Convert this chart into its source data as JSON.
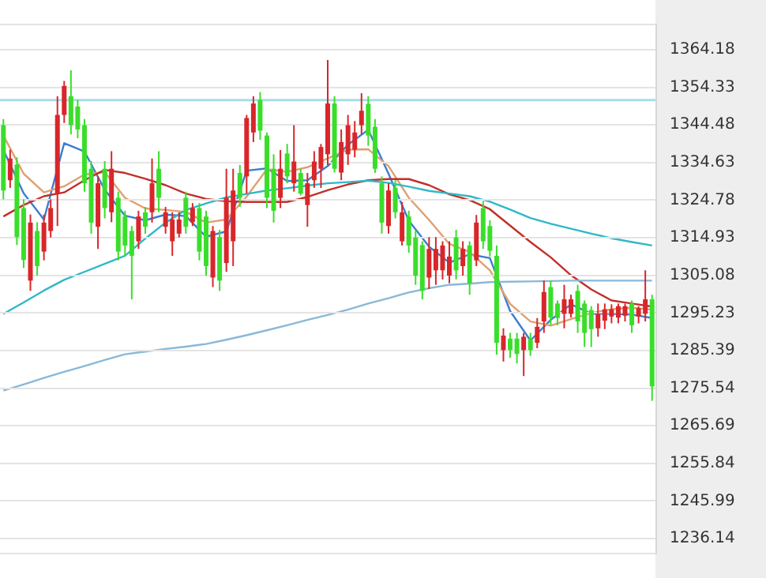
{
  "chart_data": [
    {
      "type": "candlestick",
      "categories": [
        null,
        null,
        null,
        null,
        null,
        null,
        null,
        null,
        null,
        null,
        null,
        null,
        null,
        null,
        null,
        null,
        null,
        null,
        null,
        null,
        null,
        null,
        null,
        null,
        null,
        null,
        null,
        null,
        null,
        null,
        null,
        null,
        null,
        null,
        null,
        null,
        null,
        null,
        null,
        null,
        null,
        null,
        null,
        null,
        null,
        null,
        null,
        null,
        null,
        null,
        null,
        null,
        null,
        null,
        null,
        null,
        null,
        null,
        null,
        null,
        null,
        null,
        null,
        null,
        null,
        null,
        null,
        null,
        null,
        null,
        null,
        null,
        null,
        null,
        null,
        null,
        null,
        null,
        null,
        null,
        null,
        null,
        null,
        null,
        null,
        null,
        null,
        null,
        null,
        null,
        null,
        null,
        null,
        null,
        null,
        null,
        null
      ],
      "ohlc": [
        [
          1344.4,
          1346,
          1325,
          1327.3
        ],
        [
          1330,
          1338,
          1328,
          1335.7
        ],
        [
          1334.1,
          1336,
          1313,
          1315.1
        ],
        [
          1322.7,
          1325,
          1307,
          1309.1
        ],
        [
          1303.7,
          1321,
          1301,
          1318.9
        ],
        [
          1316.7,
          1319,
          1305,
          1307.5
        ],
        [
          1311.3,
          1321,
          1309,
          1318.9
        ],
        [
          1316.7,
          1325,
          1315,
          1322.7
        ],
        [
          1326.5,
          1352,
          1318,
          1347.1
        ],
        [
          1347.1,
          1356,
          1345,
          1354.7
        ],
        [
          1352,
          1358.8,
          1342,
          1344.4
        ],
        [
          1349.3,
          1351,
          1341,
          1343.3
        ],
        [
          1344.4,
          1346,
          1327,
          1329.2
        ],
        [
          1333,
          1335,
          1316,
          1318.9
        ],
        [
          1317.8,
          1331,
          1312,
          1329.2
        ],
        [
          1333,
          1335,
          1320,
          1322.7
        ],
        [
          1321.6,
          1337.6,
          1319,
          1333
        ],
        [
          1325.4,
          1327,
          1309,
          1311.3
        ],
        [
          1320.5,
          1322,
          1310,
          1312.9
        ],
        [
          1316.7,
          1318,
          1298.8,
          1310.2
        ],
        [
          1314,
          1322,
          1312,
          1320.5
        ],
        [
          1321.6,
          1323,
          1316,
          1317.8
        ],
        [
          1321.6,
          1335.7,
          1318.9,
          1329.2
        ],
        [
          1333,
          1337.6,
          1321.6,
          1325.4
        ],
        [
          1317.8,
          1323,
          1316,
          1321.6
        ],
        [
          1314,
          1321.6,
          1310.2,
          1319.7
        ],
        [
          1316,
          1321.6,
          1315,
          1319.7
        ],
        [
          1325.4,
          1327,
          1316,
          1317.8
        ],
        [
          1319,
          1324,
          1318,
          1322.7
        ],
        [
          1322.7,
          1324,
          1309,
          1311.3
        ],
        [
          1320.5,
          1322,
          1305,
          1307.5
        ],
        [
          1304.5,
          1318,
          1302,
          1316.7
        ],
        [
          1315.1,
          1317,
          1301,
          1303.7
        ],
        [
          1308.3,
          1333,
          1306,
          1325.4
        ],
        [
          1314,
          1333,
          1307.5,
          1327.3
        ],
        [
          1331.9,
          1334,
          1323,
          1325.4
        ],
        [
          1331,
          1347.1,
          1326.5,
          1346.3
        ],
        [
          1342.5,
          1352,
          1340,
          1350.1
        ],
        [
          1351,
          1353.1,
          1340.6,
          1343
        ],
        [
          1341.7,
          1342.5,
          1322.7,
          1325.4
        ],
        [
          1333,
          1336.8,
          1318.9,
          1322
        ],
        [
          1325.4,
          1337.9,
          1322.7,
          1333
        ],
        [
          1337,
          1339.5,
          1329.2,
          1331
        ],
        [
          1329.2,
          1344.4,
          1327,
          1334.9
        ],
        [
          1331.9,
          1333,
          1326,
          1326.5
        ],
        [
          1323.5,
          1331.9,
          1317.8,
          1329.2
        ],
        [
          1330,
          1337.6,
          1328,
          1334.9
        ],
        [
          1333,
          1339.5,
          1328,
          1338.7
        ],
        [
          1336.8,
          1361.5,
          1334,
          1350.1
        ],
        [
          1350.1,
          1352,
          1332,
          1333
        ],
        [
          1332,
          1343.3,
          1330,
          1340
        ],
        [
          1336.8,
          1347.1,
          1334,
          1344.4
        ],
        [
          1338,
          1345.5,
          1336,
          1342.5
        ],
        [
          1344.4,
          1352.8,
          1342,
          1348.2
        ],
        [
          1350,
          1352,
          1339,
          1341.7
        ],
        [
          1344,
          1346,
          1331.9,
          1333
        ],
        [
          1329.2,
          1331,
          1316,
          1318.9
        ],
        [
          1318,
          1329.2,
          1316,
          1327.3
        ],
        [
          1328,
          1330,
          1320,
          1321.6
        ],
        [
          1314,
          1324.3,
          1312.9,
          1321.6
        ],
        [
          1320.5,
          1322,
          1311,
          1312.9
        ],
        [
          1315,
          1317,
          1302.6,
          1305
        ],
        [
          1313,
          1314,
          1298.8,
          1301
        ],
        [
          1304.5,
          1315.1,
          1301.5,
          1312
        ],
        [
          1306.4,
          1315.1,
          1302.6,
          1312
        ],
        [
          1306.4,
          1314,
          1304,
          1312.9
        ],
        [
          1305,
          1314,
          1303,
          1310
        ],
        [
          1315,
          1317,
          1304,
          1306.4
        ],
        [
          1307.5,
          1314,
          1305,
          1312
        ],
        [
          1312.9,
          1314,
          1300,
          1303
        ],
        [
          1309,
          1320.9,
          1307.5,
          1318.9
        ],
        [
          1322.7,
          1324.5,
          1312,
          1314
        ],
        [
          1318,
          1319.5,
          1310,
          1311.5
        ],
        [
          1310.2,
          1312.9,
          1284.3,
          1287.4
        ],
        [
          1285.5,
          1291.2,
          1282.5,
          1289.3
        ],
        [
          1288.5,
          1290,
          1283.5,
          1285.5
        ],
        [
          1288.5,
          1290,
          1282,
          1284.5
        ],
        [
          1285.5,
          1290,
          1278.7,
          1289
        ],
        [
          1288.5,
          1290,
          1284,
          1285.5
        ],
        [
          1287.4,
          1293.9,
          1286,
          1291.6
        ],
        [
          1293,
          1303.7,
          1290,
          1300.7
        ],
        [
          1302,
          1303.7,
          1292,
          1294
        ],
        [
          1297.7,
          1298.5,
          1292,
          1293.9
        ],
        [
          1295,
          1302.6,
          1291.2,
          1298.8
        ],
        [
          1295,
          1300,
          1294,
          1298.8
        ],
        [
          1301,
          1302.6,
          1290,
          1293
        ],
        [
          1297.7,
          1298.5,
          1286.3,
          1290
        ],
        [
          1296,
          1297,
          1286.3,
          1291
        ],
        [
          1291.2,
          1297.7,
          1289,
          1295
        ],
        [
          1293.2,
          1297.7,
          1291,
          1296.2
        ],
        [
          1294.3,
          1297.5,
          1292.5,
          1296.2
        ],
        [
          1294,
          1297.7,
          1292.5,
          1297
        ],
        [
          1294.5,
          1297.7,
          1293,
          1297
        ],
        [
          1297.7,
          1298.5,
          1290,
          1292
        ],
        [
          1294.3,
          1297,
          1292.5,
          1296.5
        ],
        [
          1295,
          1306.4,
          1293,
          1298.8
        ],
        [
          1298.8,
          1300,
          1272.2,
          1276
        ]
      ],
      "colors": [
        "#3ade2a",
        "#d8262a",
        "#3ade2a",
        "#3ade2a",
        "#d8262a",
        "#3ade2a",
        "#d8262a",
        "#d8262a",
        "#d8262a",
        "#d8262a",
        "#3ade2a",
        "#3ade2a",
        "#3ade2a",
        "#3ade2a",
        "#d8262a",
        "#3ade2a",
        "#d8262a",
        "#3ade2a",
        "#3ade2a",
        "#3ade2a",
        "#d8262a",
        "#3ade2a",
        "#d8262a",
        "#3ade2a",
        "#d8262a",
        "#d8262a",
        "#d8262a",
        "#3ade2a",
        "#d8262a",
        "#3ade2a",
        "#3ade2a",
        "#d8262a",
        "#3ade2a",
        "#d8262a",
        "#d8262a",
        "#3ade2a",
        "#d8262a",
        "#d8262a",
        "#3ade2a",
        "#3ade2a",
        "#3ade2a",
        "#d8262a",
        "#3ade2a",
        "#d8262a",
        "#3ade2a",
        "#d8262a",
        "#d8262a",
        "#d8262a",
        "#d8262a",
        "#3ade2a",
        "#d8262a",
        "#d8262a",
        "#d8262a",
        "#d8262a",
        "#3ade2a",
        "#3ade2a",
        "#3ade2a",
        "#d8262a",
        "#3ade2a",
        "#d8262a",
        "#3ade2a",
        "#3ade2a",
        "#3ade2a",
        "#d8262a",
        "#d8262a",
        "#d8262a",
        "#d8262a",
        "#3ade2a",
        "#d8262a",
        "#3ade2a",
        "#d8262a",
        "#3ade2a",
        "#3ade2a",
        "#3ade2a",
        "#d8262a",
        "#3ade2a",
        "#3ade2a",
        "#d8262a",
        "#3ade2a",
        "#d8262a",
        "#d8262a",
        "#3ade2a",
        "#3ade2a",
        "#d8262a",
        "#d8262a",
        "#3ade2a",
        "#3ade2a",
        "#3ade2a",
        "#d8262a",
        "#d8262a",
        "#d8262a",
        "#d8262a",
        "#d8262a",
        "#3ade2a",
        "#d8262a",
        "#d8262a",
        "#3ade2a"
      ],
      "ylim": [
        1232,
        1371
      ],
      "yticks": [
        1364.18,
        1354.33,
        1344.48,
        1334.63,
        1324.78,
        1314.93,
        1305.08,
        1295.23,
        1285.39,
        1275.54,
        1265.69,
        1255.84,
        1245.99,
        1236.14
      ],
      "ref_lines": [
        {
          "axis": "y",
          "value": 1351,
          "color": "#a8dce8"
        }
      ],
      "grid": "y",
      "legend": false,
      "tick_labels": "y"
    },
    {
      "type": "line",
      "categories": [
        null,
        null,
        null,
        null,
        null,
        null,
        null,
        null,
        null,
        null,
        null,
        null,
        null,
        null,
        null,
        null,
        null,
        null,
        null,
        null,
        null,
        null,
        null,
        null,
        null,
        null,
        null,
        null,
        null,
        null,
        null,
        null,
        null
      ],
      "series": [
        {
          "color": "#8ab8d8",
          "values": [
            1274.9,
            1276.5,
            1278.2,
            1279.8,
            1281.3,
            1282.9,
            1284.4,
            1285.1,
            1285.8,
            1286.4,
            1287.1,
            1288.2,
            1289.4,
            1290.7,
            1292,
            1293.4,
            1294.7,
            1296.1,
            1297.7,
            1299.1,
            1300.6,
            1301.7,
            1302.6,
            1302.9,
            1303.3,
            1303.4,
            1303.5,
            1303.6,
            1303.7,
            1303.7,
            1303.7,
            1303.7,
            1303.7
          ]
        },
        {
          "color": "#2fb8c8",
          "values": [
            1295,
            1298,
            1301.1,
            1303.9,
            1306,
            1308.1,
            1310.2,
            1314.7,
            1318.9,
            1322.2,
            1323.9,
            1325.5,
            1326.4,
            1327.3,
            1327.9,
            1328.6,
            1329.2,
            1329.5,
            1329.9,
            1329.3,
            1328.3,
            1327.2,
            1326.5,
            1325.8,
            1324.4,
            1322.3,
            1320.1,
            1318.6,
            1317.3,
            1316,
            1314.8,
            1313.8,
            1312.9
          ]
        },
        {
          "color": "#c0302a",
          "values": [
            1320.5,
            1323.5,
            1325.8,
            1326.8,
            1330,
            1332.7,
            1331.9,
            1330.4,
            1328.7,
            1326.5,
            1325.1,
            1324.5,
            1324.3,
            1324.3,
            1324.3,
            1325.6,
            1327.4,
            1328.9,
            1330,
            1330.3,
            1330.3,
            1328.7,
            1326.3,
            1324.8,
            1322.4,
            1318.1,
            1313.8,
            1309.8,
            1305.1,
            1301.4,
            1298.5,
            1297.7,
            1296.9
          ]
        },
        {
          "color": "#e0a070",
          "values": [
            1341.7,
            1331.7,
            1326.8,
            1328.4,
            1331.5,
            1332.1,
            1325.4,
            1322.6,
            1322.2,
            1321.7,
            1318.9,
            1319.7,
            1325.7,
            1332.9,
            1332.2,
            1333.4,
            1335.7,
            1338,
            1338.1,
            1333.7,
            1325.4,
            1319.6,
            1313.3,
            1311.2,
            1306.4,
            1297.6,
            1293,
            1291.9,
            1293.6,
            1295.2,
            1296.2,
            1296.6,
            1296.1
          ]
        },
        {
          "color": "#3a7fd0",
          "values": [
            1337.9,
            1326.6,
            1319.7,
            1339.7,
            1337.5,
            1327.5,
            1320.7,
            1319.5,
            1321,
            1320.6,
            1315.2,
            1316.6,
            1332.5,
            1333.1,
            1329.8,
            1330,
            1333.7,
            1339.3,
            1343.2,
            1331.7,
            1319.4,
            1312.6,
            1308.4,
            1310.6,
            1309.6,
            1295.7,
            1288,
            1293.4,
            1297.5,
            1295,
            1295,
            1294.8,
            1293.9
          ]
        }
      ],
      "ylim": [
        1232,
        1371
      ],
      "legend": false,
      "tick_labels": false,
      "marker": "none",
      "line_style": "solid"
    }
  ]
}
